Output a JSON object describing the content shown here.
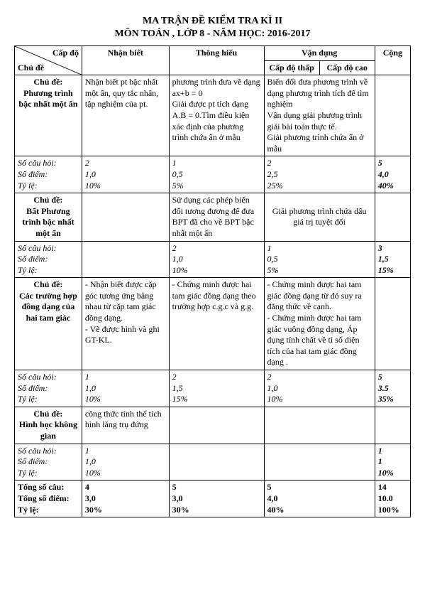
{
  "title1": "MA TRẬN ĐỀ KIỂM TRA KÌ II",
  "title2": "MÔN TOÁN , LỚP 8 - NĂM HỌC: 2016-2017",
  "header": {
    "capdo": "Cấp độ",
    "chude": "Chủ đề",
    "nhanbiet": "Nhận biết",
    "thonghieu": "Thông hiểu",
    "vandung": "Vận dụng",
    "capdothap": "Cấp độ thấp",
    "capdocao": "Cấp độ cao",
    "cong": "Cộng"
  },
  "labels": {
    "socauhoi": "Số câu hỏi:",
    "sodiem": "Số điểm:",
    "tyle": "Tỷ lệ:"
  },
  "rows": [
    {
      "chude": "Chủ đề:\nPhương trình bậc nhất một ẩn",
      "nhanbiet": "Nhận biết pt bậc nhất một ẩn, quy tắc nhân, tập nghiệm của pt.",
      "thonghieu": "phương trình đưa về dạng ax+b = 0\nGiải được pt tích dạng A.B = 0.Tìm điều kiện xác định của phương trình chứa ẩn ở mẫu",
      "vandung": "Biến đổi đưa phương trình về dạng phương trình tích để tìm nghiệm\nVận dụng giải phương trình giải bài toán thực tế.\nGiải phương trình chứa ẩn ở mẫu",
      "stats": {
        "c1": [
          "2",
          "1,0",
          "10%"
        ],
        "c2": [
          "1",
          "0,5",
          "5%"
        ],
        "c3": [
          "2",
          "2,5",
          "25%"
        ],
        "cong": [
          "5",
          "4,0",
          "40%"
        ]
      }
    },
    {
      "chude": "Chủ đề:\nBất Phương trình bậc nhất một ẩn",
      "nhanbiet": "",
      "thonghieu": "Sử dụng các phép biến đổi tương đương để đưa BPT đã cho về BPT bậc nhất một ẩn",
      "vandung": "Giải phương trình chứa dấu giá trị tuyệt đối",
      "vandung_center": true,
      "stats": {
        "c1": [
          "",
          "",
          ""
        ],
        "c2": [
          "2",
          "1,0",
          "10%"
        ],
        "c3": [
          "1",
          "0,5",
          "5%"
        ],
        "cong": [
          "3",
          "1,5",
          "15%"
        ]
      }
    },
    {
      "chude": "Chủ đề:\nCác trường hợp đồng dạng của hai tam giác",
      "nhanbiet": "- Nhận biết được cặp góc tương ứng bằng nhau từ cặp tam giác đồng dạng.\n- Vẽ được hình và ghi GT-KL.",
      "thonghieu": "- Chứng minh được hai tam giác đồng dạng theo trường hợp c.g.c và g.g.",
      "vandung": "- Chứng minh được hai tam giác đồng dạng từ đó suy ra đẳng thức về cạnh.\n- Chứng minh được hai tam giác vuông đồng dạng, Áp dụng tính chất về tỉ số diện tích của hai tam giác đồng dạng .",
      "stats": {
        "c1": [
          "1",
          "1,0",
          "10%"
        ],
        "c2": [
          "2",
          "1,5",
          "15%"
        ],
        "c3": [
          "2",
          "1,0",
          "10%"
        ],
        "cong": [
          "5",
          "3.5",
          "35%"
        ]
      }
    },
    {
      "chude": "Chủ đề:\nHình học không gian",
      "nhanbiet": "công thức tính thể tích hình lăng trụ đứng",
      "thonghieu": "",
      "vandung": "",
      "stats": {
        "c1": [
          "1",
          "1,0",
          "10%"
        ],
        "c2": [
          "",
          "",
          ""
        ],
        "c3": [
          "",
          "",
          ""
        ],
        "cong": [
          "1",
          "1",
          "10%"
        ]
      }
    }
  ],
  "totals": {
    "label": [
      "Tổng số câu:",
      "Tổng số điểm:",
      "Tỷ lệ:"
    ],
    "c1": [
      "4",
      "3,0",
      "30%"
    ],
    "c2": [
      "5",
      "3,0",
      "30%"
    ],
    "c3": [
      "5",
      "4,0",
      "40%"
    ],
    "cong": [
      "14",
      "10.0",
      "100%"
    ]
  },
  "colors": {
    "border": "#000000",
    "bg": "#ffffff",
    "text": "#000000"
  }
}
